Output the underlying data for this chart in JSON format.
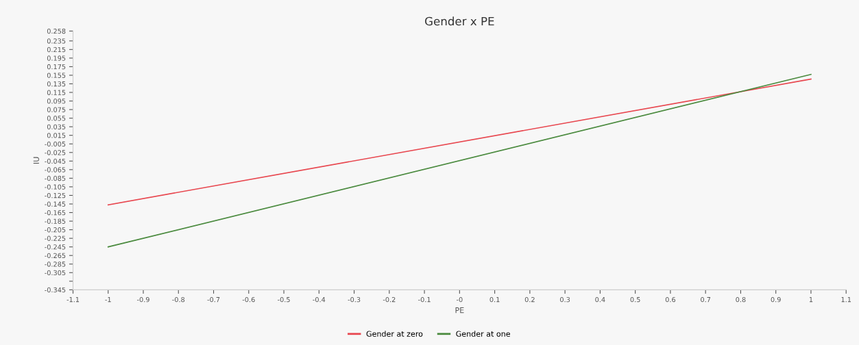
{
  "chart_data": {
    "type": "line",
    "title": "Gender x PE",
    "xlabel": "PE",
    "ylabel": "IU",
    "x": [
      -1,
      1
    ],
    "series": [
      {
        "name": "Gender at zero",
        "color": "#e8474f",
        "values": [
          -0.147,
          0.146
        ]
      },
      {
        "name": "Gender at one",
        "color": "#4a8a3e",
        "values": [
          -0.245,
          0.157
        ]
      }
    ],
    "xlim": [
      -1.1,
      1.1
    ],
    "xticks": [
      -1.1,
      {
        "value": -1,
        "label": "-1"
      },
      -0.9,
      -0.8,
      -0.7,
      -0.6,
      -0.5,
      -0.4,
      -0.3,
      -0.2,
      -0.1,
      {
        "value": 0,
        "label": "-0"
      },
      0.1,
      0.2,
      0.3,
      0.4,
      0.5,
      0.6,
      0.7,
      0.8,
      0.9,
      {
        "value": 1,
        "label": "1"
      },
      1.1
    ],
    "ylim": [
      -0.345,
      0.258
    ],
    "yticks": [
      0.258,
      0.235,
      0.215,
      0.195,
      0.175,
      0.155,
      0.135,
      0.115,
      0.095,
      0.075,
      0.055,
      0.035,
      0.015,
      -0.005,
      -0.025,
      -0.045,
      -0.065,
      -0.085,
      -0.105,
      -0.125,
      -0.145,
      -0.165,
      -0.185,
      -0.205,
      -0.225,
      -0.245,
      -0.265,
      -0.285,
      -0.305,
      {
        "value": -0.325,
        "label": null
      },
      -0.345
    ],
    "grid": false,
    "legend": "bottom",
    "marker": "none",
    "line_style": "solid"
  }
}
